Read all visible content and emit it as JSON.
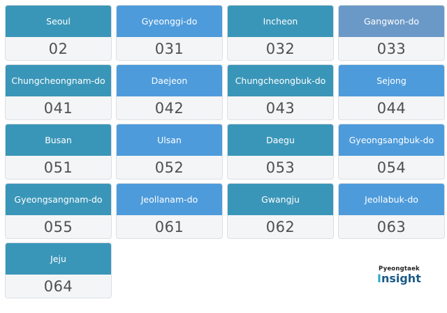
{
  "cards": [
    {
      "region": "Seoul",
      "code": "02",
      "color": "#3a96b8"
    },
    {
      "region": "Gyeonggi-do",
      "code": "031",
      "color": "#4d9bdb"
    },
    {
      "region": "Incheon",
      "code": "032",
      "color": "#3a96b8"
    },
    {
      "region": "Gangwon-do",
      "code": "033",
      "color": "#6b99c7"
    },
    {
      "region": "Chungcheongnam-do",
      "code": "041",
      "color": "#3a96b8"
    },
    {
      "region": "Daejeon",
      "code": "042",
      "color": "#4d9bdb"
    },
    {
      "region": "Chungcheongbuk-do",
      "code": "043",
      "color": "#3a96b8"
    },
    {
      "region": "Sejong",
      "code": "044",
      "color": "#4d9bdb"
    },
    {
      "region": "Busan",
      "code": "051",
      "color": "#3a96b8"
    },
    {
      "region": "Ulsan",
      "code": "052",
      "color": "#4d9bdb"
    },
    {
      "region": "Daegu",
      "code": "053",
      "color": "#3a96b8"
    },
    {
      "region": "Gyeongsangbuk-do",
      "code": "054",
      "color": "#4d9bdb"
    },
    {
      "region": "Gyeongsangnam-do",
      "code": "055",
      "color": "#3a96b8"
    },
    {
      "region": "Jeollanam-do",
      "code": "061",
      "color": "#4d9bdb"
    },
    {
      "region": "Gwangju",
      "code": "062",
      "color": "#3a96b8"
    },
    {
      "region": "Jeollabuk-do",
      "code": "063",
      "color": "#4d9bdb"
    },
    {
      "region": "Jeju",
      "code": "064",
      "color": "#3a96b8"
    }
  ],
  "brand": {
    "top": "Pyeongtaek",
    "main_first": "I",
    "main_rest": "nsight"
  }
}
